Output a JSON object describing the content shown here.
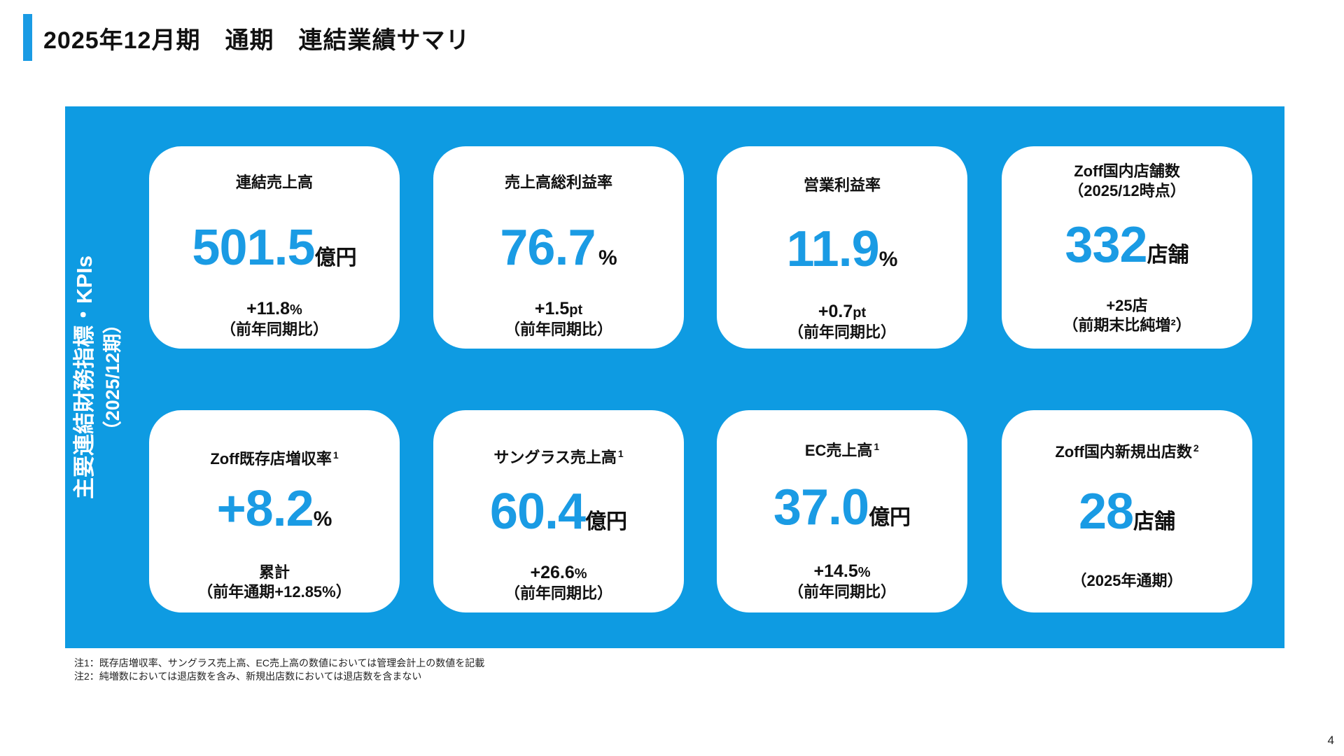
{
  "title": "2025年12月期　通期　連結業績サマリ",
  "side_label": {
    "line1": "主要連結財務指標・KPIs",
    "line2": "（2025/12期）"
  },
  "cards": [
    {
      "label1": "連結売上高",
      "label2": "",
      "fn": "",
      "value": "501.5",
      "unit": "億円",
      "sub_a": "+11.8",
      "sub_unit": "%",
      "sub_b": "（前年同期比）"
    },
    {
      "label1": "売上高総利益率",
      "label2": "",
      "fn": "",
      "value": "76.7",
      "unit": "%",
      "sub_a": "+1.5",
      "sub_unit": "pt",
      "sub_b": "（前年同期比）"
    },
    {
      "label1": "営業利益率",
      "label2": "",
      "fn": "",
      "value": "11.9",
      "unit": "%",
      "sub_a": "+0.7",
      "sub_unit": "pt",
      "sub_b": "（前年同期比）"
    },
    {
      "label1": "Zoff国内店舗数",
      "label2": "（2025/12時点）",
      "fn": "",
      "value": "332",
      "unit": "店舗",
      "sub_a": "+25店",
      "sub_unit": "",
      "sub_b": "（前期末比純増²）"
    },
    {
      "label1": "Zoff既存店増収率",
      "label2": "",
      "fn": "1",
      "value": "+8.2",
      "unit": "%",
      "sub_a": "累計",
      "sub_unit": "",
      "sub_b": "（前年通期+12.85%）"
    },
    {
      "label1": "サングラス売上高",
      "label2": "",
      "fn": "1",
      "value": "60.4",
      "unit": "億円",
      "sub_a": "+26.6",
      "sub_unit": "%",
      "sub_b": "（前年同期比）"
    },
    {
      "label1": "EC売上高",
      "label2": "",
      "fn": "1",
      "value": "37.0",
      "unit": "億円",
      "sub_a": "+14.5",
      "sub_unit": "%",
      "sub_b": "（前年同期比）"
    },
    {
      "label1": "Zoff国内新規出店数",
      "label2": "",
      "fn": "2",
      "value": "28",
      "unit": "店舗",
      "sub_a": "",
      "sub_unit": "",
      "sub_b": "（2025年通期）"
    }
  ],
  "notes": [
    "注1：既存店増収率、サングラス売上高、EC売上高の数値においては管理会計上の数値を記載",
    "注2：純増数においては退店数を含み、新規出店数においては退店数を含まない"
  ],
  "page_number": "4",
  "colors": {
    "accent": "#1a9be4",
    "panel": "#0e9be2"
  }
}
